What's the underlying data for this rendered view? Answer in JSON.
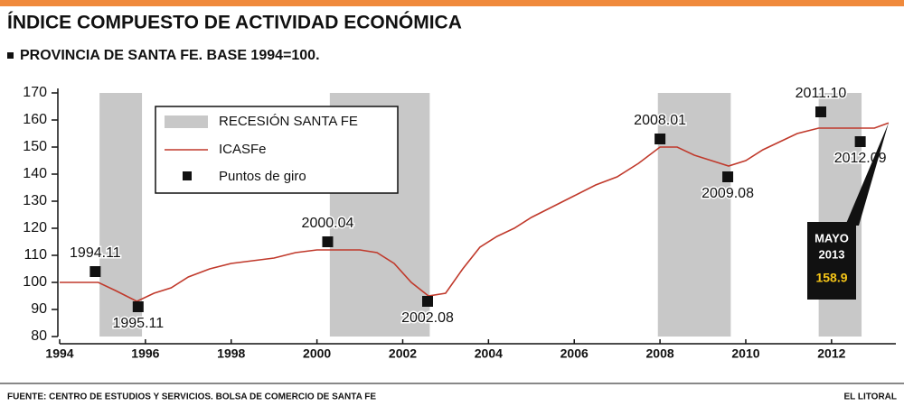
{
  "chart_data": {
    "type": "line",
    "title": "ÍNDICE COMPUESTO DE ACTIVIDAD ECONÓMICA",
    "subtitle": "PROVINCIA DE SANTA FE. BASE 1994=100.",
    "xlim": [
      1994,
      2013.5
    ],
    "xticks": [
      1994,
      1996,
      1998,
      2000,
      2002,
      2004,
      2006,
      2008,
      2010,
      2012
    ],
    "ylim": [
      80,
      170
    ],
    "yticks": [
      80,
      90,
      100,
      110,
      120,
      130,
      140,
      150,
      160,
      170
    ],
    "series": [
      {
        "name": "ICASFe",
        "color": "#c0392b",
        "x": [
          1994,
          1994.5,
          1994.9,
          1995.3,
          1995.8,
          1996.2,
          1996.6,
          1997,
          1997.5,
          1998,
          1998.5,
          1999,
          1999.5,
          2000,
          2000.5,
          2001,
          2001.4,
          2001.8,
          2002.2,
          2002.6,
          2003,
          2003.4,
          2003.8,
          2004.2,
          2004.6,
          2005,
          2005.5,
          2006,
          2006.5,
          2007,
          2007.5,
          2008,
          2008.4,
          2008.8,
          2009.2,
          2009.6,
          2010,
          2010.4,
          2010.8,
          2011.2,
          2011.7,
          2012,
          2012.5,
          2013,
          2013.33
        ],
        "values": [
          100,
          100,
          100,
          97,
          93,
          96,
          98,
          102,
          105,
          107,
          108,
          109,
          111,
          112,
          112,
          112,
          111,
          107,
          100,
          95,
          96,
          105,
          113,
          117,
          120,
          124,
          128,
          132,
          136,
          139,
          144,
          150,
          150,
          147,
          145,
          143,
          145,
          149,
          152,
          155,
          157,
          157,
          157,
          157,
          158.9
        ]
      }
    ],
    "recessions": {
      "name": "RECESIÓN SANTA FE",
      "color": "#c8c8c8",
      "ranges": [
        [
          1994.93,
          1995.92
        ],
        [
          2000.3,
          2002.63
        ],
        [
          2007.95,
          2009.65
        ],
        [
          2011.7,
          2012.7
        ]
      ]
    },
    "turning_points": {
      "name": "Puntos de giro",
      "color": "#111111",
      "x": [
        1994.83,
        1995.83,
        2000.25,
        2002.58,
        2008.0,
        2009.58,
        2011.75,
        2012.67
      ],
      "values": [
        104,
        91,
        115,
        93,
        153,
        139,
        163,
        152
      ],
      "labels": [
        "1994.11",
        "1995.11",
        "2000.04",
        "2002.08",
        "2008.01",
        "2009.08",
        "2011.10",
        "2012.09"
      ]
    },
    "callout": {
      "month": "MAYO",
      "year": "2013",
      "value": 158.9
    },
    "source": "FUENTE: CENTRO DE ESTUDIOS Y SERVICIOS. BOLSA DE COMERCIO DE SANTA FE",
    "credit": "EL LITORAL"
  }
}
